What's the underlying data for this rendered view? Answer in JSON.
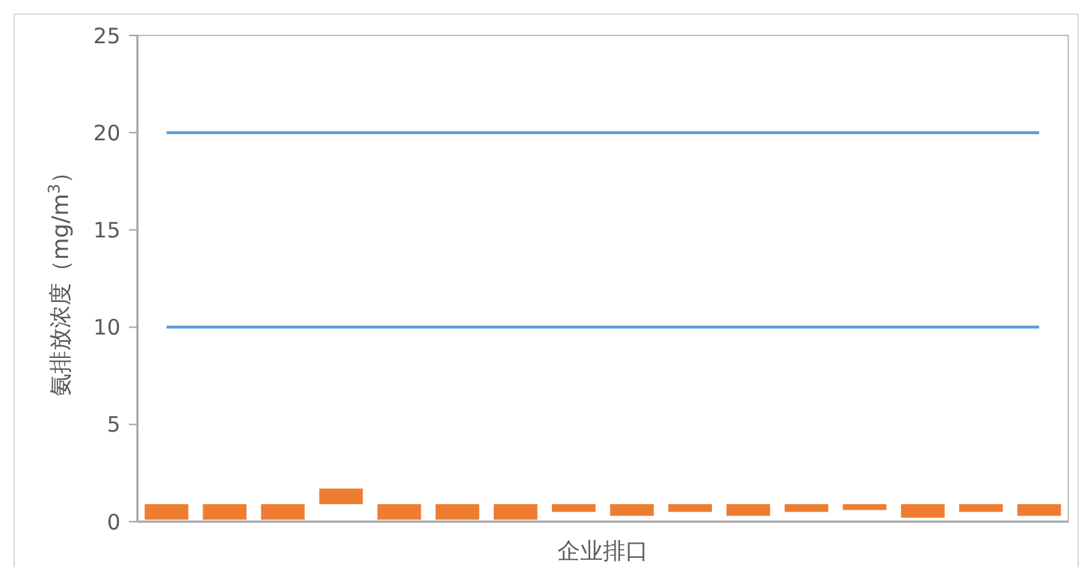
{
  "chart_data": {
    "type": "bar",
    "xlabel": "企业排口",
    "ylabel": "氨排放浓度（mg/m$^{3}$）",
    "categories": [
      null,
      null,
      null,
      null,
      null,
      null,
      null,
      null,
      null,
      null,
      null,
      null,
      null,
      null,
      null,
      null
    ],
    "series": [
      {
        "color": "#ed7d31",
        "base": [
          0.1,
          0.1,
          0.1,
          0.9,
          0.1,
          0.1,
          0.1,
          0.5,
          0.3,
          0.5,
          0.3,
          0.5,
          0.6,
          0.2,
          0.5,
          0.3
        ],
        "values": [
          0.8,
          0.8,
          0.8,
          0.8,
          0.8,
          0.8,
          0.8,
          0.4,
          0.6,
          0.4,
          0.6,
          0.4,
          0.3,
          0.7,
          0.4,
          0.6
        ]
      },
      {
        "type": "line",
        "color": "#5b9bd5",
        "values": [
          20,
          20,
          20,
          20,
          20,
          20,
          20,
          20,
          20,
          20,
          20,
          20,
          20,
          20,
          20,
          20
        ]
      },
      {
        "type": "line",
        "color": "#5b9bd5",
        "values": [
          10,
          10,
          10,
          10,
          10,
          10,
          10,
          10,
          10,
          10,
          10,
          10,
          10,
          10,
          10,
          10
        ]
      }
    ],
    "ylim": [
      0,
      25
    ],
    "yticks": [
      0,
      5,
      10,
      15,
      20,
      25
    ],
    "grid": false
  }
}
